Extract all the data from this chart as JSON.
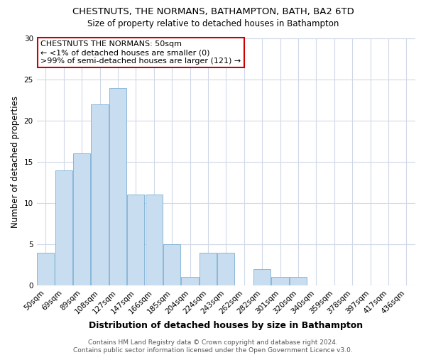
{
  "title": "CHESTNUTS, THE NORMANS, BATHAMPTON, BATH, BA2 6TD",
  "subtitle": "Size of property relative to detached houses in Bathampton",
  "xlabel": "Distribution of detached houses by size in Bathampton",
  "ylabel": "Number of detached properties",
  "bar_labels": [
    "50sqm",
    "69sqm",
    "89sqm",
    "108sqm",
    "127sqm",
    "147sqm",
    "166sqm",
    "185sqm",
    "204sqm",
    "224sqm",
    "243sqm",
    "262sqm",
    "282sqm",
    "301sqm",
    "320sqm",
    "340sqm",
    "359sqm",
    "378sqm",
    "397sqm",
    "417sqm",
    "436sqm"
  ],
  "bar_values": [
    4,
    14,
    16,
    22,
    24,
    11,
    11,
    5,
    1,
    4,
    4,
    0,
    2,
    1,
    1,
    0,
    0,
    0,
    0,
    0,
    0
  ],
  "highlight_bar_index": -1,
  "bar_color": "#c8ddf0",
  "bar_edge_color": "#7ab0d4",
  "ylim": [
    0,
    30
  ],
  "yticks": [
    0,
    5,
    10,
    15,
    20,
    25,
    30
  ],
  "annotation_text": "CHESTNUTS THE NORMANS: 50sqm\n← <1% of detached houses are smaller (0)\n>99% of semi-detached houses are larger (121) →",
  "annotation_box_color": "#ffffff",
  "annotation_box_edgecolor": "#cc0000",
  "footer_line1": "Contains HM Land Registry data © Crown copyright and database right 2024.",
  "footer_line2": "Contains public sector information licensed under the Open Government Licence v3.0.",
  "background_color": "#ffffff",
  "plot_background_color": "#ffffff",
  "grid_color": "#d0d8e8"
}
